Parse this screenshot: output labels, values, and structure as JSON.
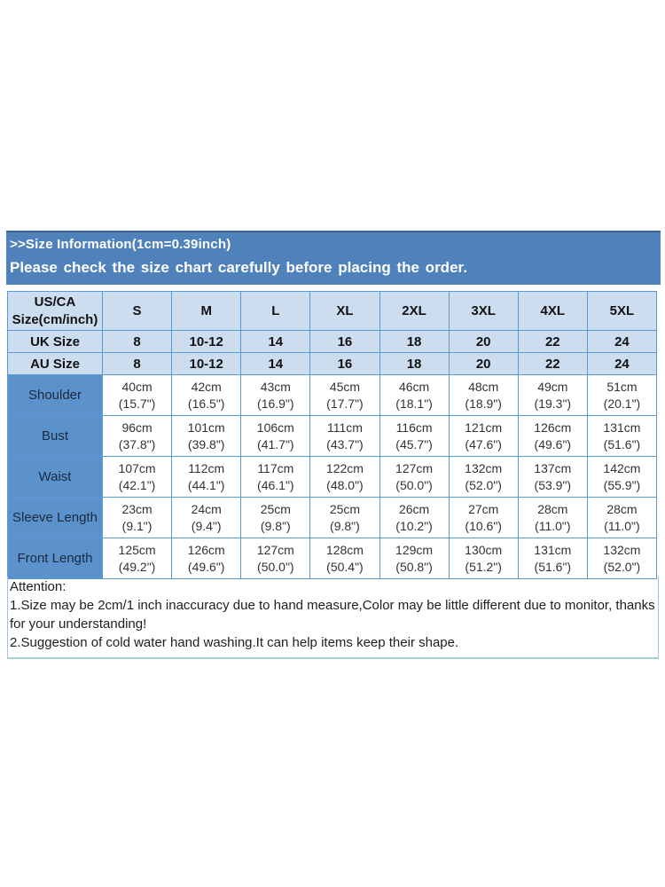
{
  "banner": {
    "line1": ">>Size Information(1cm=0.39inch)",
    "line2": "Please check the size chart carefully before placing the order."
  },
  "table": {
    "header": {
      "label_lines": [
        "US/CA",
        "Size(cm/inch)"
      ],
      "sizes": [
        "S",
        "M",
        "L",
        "XL",
        "2XL",
        "3XL",
        "4XL",
        "5XL"
      ]
    },
    "size_rows": [
      {
        "label": "UK Size",
        "values": [
          "8",
          "10-12",
          "14",
          "16",
          "18",
          "20",
          "22",
          "24"
        ]
      },
      {
        "label": "AU Size",
        "values": [
          "8",
          "10-12",
          "14",
          "16",
          "18",
          "20",
          "22",
          "24"
        ]
      }
    ],
    "measure_rows": [
      {
        "label": "Shoulder",
        "cm": [
          "40cm",
          "42cm",
          "43cm",
          "45cm",
          "46cm",
          "48cm",
          "49cm",
          "51cm"
        ],
        "inch": [
          "(15.7\")",
          "(16.5\")",
          "(16.9\")",
          "(17.7\")",
          "(18.1\")",
          "(18.9\")",
          "(19.3\")",
          "(20.1\")"
        ]
      },
      {
        "label": "Bust",
        "cm": [
          "96cm",
          "101cm",
          "106cm",
          "111cm",
          "116cm",
          "121cm",
          "126cm",
          "131cm"
        ],
        "inch": [
          "(37.8\")",
          "(39.8\")",
          "(41.7\")",
          "(43.7\")",
          "(45.7\")",
          "(47.6\")",
          "(49.6\")",
          "(51.6\")"
        ]
      },
      {
        "label": "Waist",
        "cm": [
          "107cm",
          "112cm",
          "117cm",
          "122cm",
          "127cm",
          "132cm",
          "137cm",
          "142cm"
        ],
        "inch": [
          "(42.1\")",
          "(44.1\")",
          "(46.1\")",
          "(48.0\")",
          "(50.0\")",
          "(52.0\")",
          "(53.9\")",
          "(55.9\")"
        ]
      },
      {
        "label": "Sleeve Length",
        "cm": [
          "23cm",
          "24cm",
          "25cm",
          "25cm",
          "26cm",
          "27cm",
          "28cm",
          "28cm"
        ],
        "inch": [
          "(9.1\")",
          "(9.4\")",
          "(9.8\")",
          "(9.8\")",
          "(10.2\")",
          "(10.6\")",
          "(11.0\")",
          "(11.0\")"
        ]
      },
      {
        "label": "Front Length",
        "cm": [
          "125cm",
          "126cm",
          "127cm",
          "128cm",
          "129cm",
          "130cm",
          "131cm",
          "132cm"
        ],
        "inch": [
          "(49.2\")",
          "(49.6\")",
          "(50.0\")",
          "(50.4\")",
          "(50.8\")",
          "(51.2\")",
          "(51.6\")",
          "(52.0\")"
        ]
      }
    ]
  },
  "attention": {
    "title": "Attention:",
    "notes": [
      "1.Size may be 2cm/1 inch inaccuracy due to hand measure,Color may be little different due to monitor, thanks for your understanding!",
      "2.Suggestion of cold water hand washing.It can help items keep their shape."
    ]
  },
  "colors": {
    "banner_bg": "#4f81bb",
    "banner_top_border": "#3a648f",
    "banner_text": "#ffffff",
    "light_cell_bg": "#cdddf0",
    "label_cell_bg": "#5b92cc",
    "table_border": "#5b9bd5",
    "dark_text": "#121212",
    "attention_border": "#9dc3e6"
  }
}
